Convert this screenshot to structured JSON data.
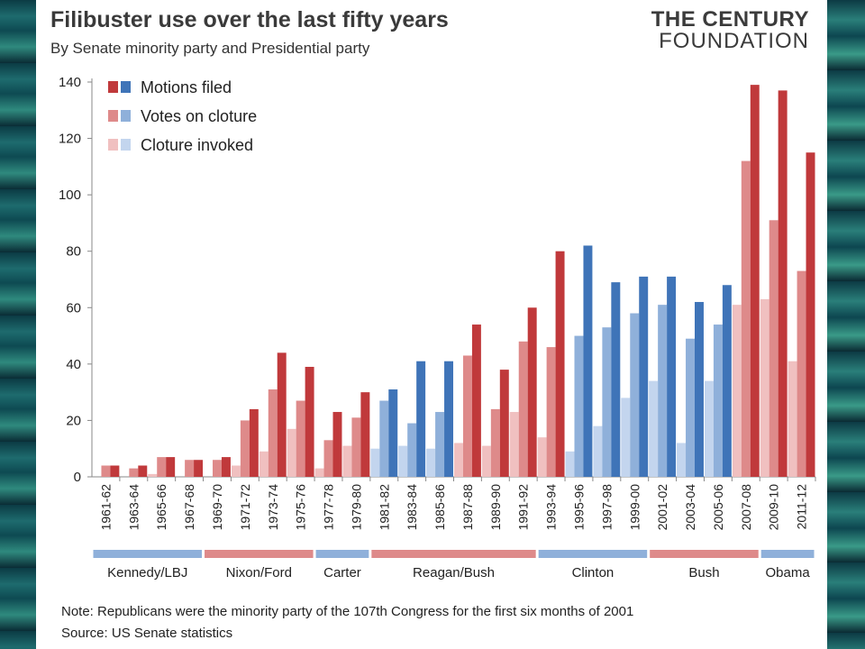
{
  "header": {
    "title": "Filibuster use over the last fifty years",
    "subtitle": "By Senate minority party and Presidential party",
    "logo_line1": "THE CENTURY",
    "logo_line2": "FOUNDATION"
  },
  "footer": {
    "note": "Note: Republicans were the minority party of the 107th Congress for the first six months of 2001",
    "source": "Source: US Senate statistics"
  },
  "colors": {
    "red_dark": "#c0393b",
    "red_mid": "#de8a8a",
    "red_light": "#f0c0c0",
    "blue_dark": "#3f74b8",
    "blue_mid": "#8fb0da",
    "blue_light": "#c3d5ee"
  },
  "chart_data": {
    "type": "bar",
    "title": "Filibuster use over the last fifty years",
    "subtitle": "By Senate minority party and Presidential party",
    "xlabel": "",
    "ylabel": "",
    "ylim": [
      0,
      140
    ],
    "yticks": [
      0,
      20,
      40,
      60,
      80,
      100,
      120,
      140
    ],
    "grid": false,
    "legend_position": "top-left",
    "categories": [
      "1961-62",
      "1963-64",
      "1965-66",
      "1967-68",
      "1969-70",
      "1971-72",
      "1973-74",
      "1975-76",
      "1977-78",
      "1979-80",
      "1981-82",
      "1983-84",
      "1985-86",
      "1987-88",
      "1989-90",
      "1991-92",
      "1993-94",
      "1995-96",
      "1997-98",
      "1999-00",
      "2001-02",
      "2003-04",
      "2005-06",
      "2007-08",
      "2009-10",
      "2011-12"
    ],
    "minority_party_color": [
      "red",
      "red",
      "red",
      "red",
      "red",
      "red",
      "red",
      "red",
      "red",
      "red",
      "blue",
      "blue",
      "blue",
      "red",
      "red",
      "red",
      "red",
      "blue",
      "blue",
      "blue",
      "blue",
      "blue",
      "blue",
      "red",
      "red",
      "red"
    ],
    "series": [
      {
        "name": "Cloture invoked",
        "values": [
          0,
          0,
          1,
          0,
          0,
          4,
          9,
          17,
          3,
          11,
          10,
          11,
          10,
          12,
          11,
          23,
          14,
          9,
          18,
          28,
          34,
          12,
          34,
          61,
          63,
          41
        ]
      },
      {
        "name": "Votes on cloture",
        "values": [
          4,
          3,
          7,
          6,
          6,
          20,
          31,
          27,
          13,
          21,
          27,
          19,
          23,
          43,
          24,
          48,
          46,
          50,
          53,
          58,
          61,
          49,
          54,
          112,
          91,
          73
        ]
      },
      {
        "name": "Motions filed",
        "values": [
          4,
          4,
          7,
          6,
          7,
          24,
          44,
          39,
          23,
          30,
          31,
          41,
          41,
          54,
          38,
          60,
          80,
          82,
          69,
          71,
          71,
          62,
          68,
          139,
          137,
          115
        ]
      }
    ],
    "legend": [
      "Motions filed",
      "Votes on cloture",
      "Cloture invoked"
    ],
    "presidents": [
      {
        "name": "Kennedy/LBJ",
        "from": 0,
        "to": 3,
        "color": "blue"
      },
      {
        "name": "Nixon/Ford",
        "from": 4,
        "to": 7,
        "color": "red"
      },
      {
        "name": "Carter",
        "from": 8,
        "to": 9,
        "color": "blue"
      },
      {
        "name": "Reagan/Bush",
        "from": 10,
        "to": 15,
        "color": "red"
      },
      {
        "name": "Clinton",
        "from": 16,
        "to": 19,
        "color": "blue"
      },
      {
        "name": "Bush",
        "from": 20,
        "to": 23,
        "color": "red"
      },
      {
        "name": "Obama",
        "from": 24,
        "to": 25,
        "color": "blue"
      }
    ]
  }
}
